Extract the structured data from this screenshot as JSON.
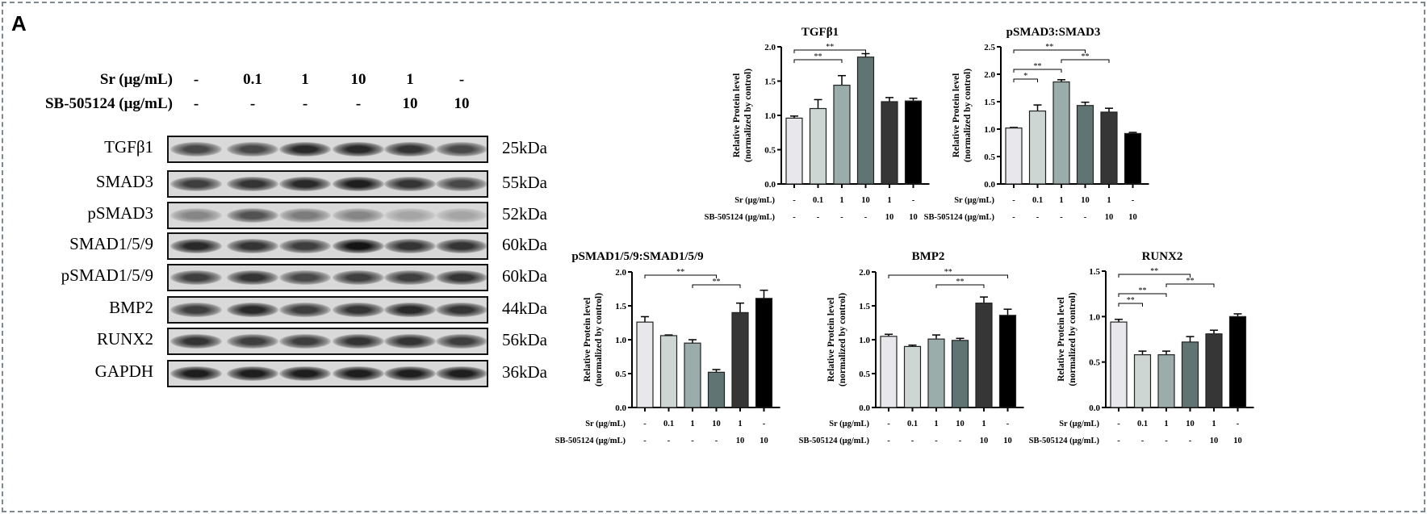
{
  "panel_letter": "A",
  "conditions": {
    "sr_label": "Sr (μg/mL)",
    "sb_label": "SB-505124 (μg/mL)",
    "sr_values": [
      "-",
      "0.1",
      "1",
      "10",
      "1",
      "-"
    ],
    "sb_values": [
      "-",
      "-",
      "-",
      "-",
      "10",
      "10"
    ]
  },
  "blots": [
    {
      "protein": "TGFβ1",
      "size": "25kDa"
    },
    {
      "protein": "SMAD3",
      "size": "55kDa"
    },
    {
      "protein": "pSMAD3",
      "size": "52kDa"
    },
    {
      "protein": "SMAD1/5/9",
      "size": "60kDa"
    },
    {
      "protein": "pSMAD1/5/9",
      "size": "60kDa"
    },
    {
      "protein": "BMP2",
      "size": "44kDa"
    },
    {
      "protein": "RUNX2",
      "size": "56kDa"
    },
    {
      "protein": "GAPDH",
      "size": "36kDa"
    }
  ],
  "bar_colors": [
    "#e8e8ec",
    "#ced6d3",
    "#9badaa",
    "#5f7473",
    "#363636",
    "#000000"
  ],
  "chart_data": [
    {
      "type": "bar",
      "title": "TGFβ1",
      "ylabel": "Relative Protein level",
      "ylabel2": "(normalized by control)",
      "ylim": [
        0,
        2.0
      ],
      "yticks": [
        "0.0",
        "0.5",
        "1.0",
        "1.5",
        "2.0"
      ],
      "row_labels": [
        "Sr (μg/mL)",
        "SB-505124 (μg/mL)"
      ],
      "categories_sr": [
        "-",
        "0.1",
        "1",
        "10",
        "1",
        "-"
      ],
      "categories_sb": [
        "-",
        "-",
        "-",
        "-",
        "10",
        "10"
      ],
      "values": [
        0.96,
        1.1,
        1.44,
        1.85,
        1.2,
        1.21
      ],
      "errors": [
        0.03,
        0.13,
        0.14,
        0.05,
        0.06,
        0.04
      ],
      "significance": [
        {
          "from": 1,
          "to": 3,
          "label": "**"
        },
        {
          "from": 1,
          "to": 4,
          "label": "**"
        }
      ]
    },
    {
      "type": "bar",
      "title": "pSMAD3:SMAD3",
      "ylabel": "Relative Protein level",
      "ylabel2": "(normalized by control)",
      "ylim": [
        0,
        2.5
      ],
      "yticks": [
        "0.0",
        "0.5",
        "1.0",
        "1.5",
        "2.0",
        "2.5"
      ],
      "row_labels": [
        "Sr (μg/mL)",
        "SB-505124 (μg/mL)"
      ],
      "categories_sr": [
        "-",
        "0.1",
        "1",
        "10",
        "1",
        "-"
      ],
      "categories_sb": [
        "-",
        "-",
        "-",
        "-",
        "10",
        "10"
      ],
      "values": [
        1.02,
        1.33,
        1.86,
        1.43,
        1.31,
        0.92
      ],
      "errors": [
        0.01,
        0.11,
        0.04,
        0.06,
        0.07,
        0.02
      ],
      "significance": [
        {
          "from": 1,
          "to": 2,
          "label": "*"
        },
        {
          "from": 1,
          "to": 3,
          "label": "**"
        },
        {
          "from": 3,
          "to": 5,
          "label": "**"
        },
        {
          "from": 1,
          "to": 4,
          "label": "**"
        }
      ]
    },
    {
      "type": "bar",
      "title": "pSMAD1/5/9:SMAD1/5/9",
      "ylabel": "Relative Protein level",
      "ylabel2": "(normalized by control)",
      "ylim": [
        0,
        2.0
      ],
      "yticks": [
        "0.0",
        "0.5",
        "1.0",
        "1.5",
        "2.0"
      ],
      "row_labels": [
        "Sr (μg/mL)",
        "SB-505124 (μg/mL)"
      ],
      "categories_sr": [
        "-",
        "0.1",
        "1",
        "10",
        "1",
        "-"
      ],
      "categories_sb": [
        "-",
        "-",
        "-",
        "-",
        "10",
        "10"
      ],
      "values": [
        1.26,
        1.06,
        0.95,
        0.52,
        1.4,
        1.61
      ],
      "errors": [
        0.08,
        0.01,
        0.05,
        0.04,
        0.14,
        0.12
      ],
      "significance": [
        {
          "from": 3,
          "to": 5,
          "label": "**"
        },
        {
          "from": 1,
          "to": 4,
          "label": "**"
        }
      ]
    },
    {
      "type": "bar",
      "title": "BMP2",
      "ylabel": "Relative Protein level",
      "ylabel2": "(normalized by control)",
      "ylim": [
        0,
        2.0
      ],
      "yticks": [
        "0.0",
        "0.5",
        "1.0",
        "1.5",
        "2.0"
      ],
      "row_labels": [
        "Sr (μg/mL)",
        "SB-505124 (μg/mL)"
      ],
      "categories_sr": [
        "-",
        "0.1",
        "1",
        "10",
        "1",
        "-"
      ],
      "categories_sb": [
        "-",
        "-",
        "-",
        "-",
        "10",
        "10"
      ],
      "values": [
        1.05,
        0.9,
        1.01,
        0.99,
        1.54,
        1.36
      ],
      "errors": [
        0.03,
        0.02,
        0.06,
        0.03,
        0.09,
        0.09
      ],
      "significance": [
        {
          "from": 3,
          "to": 5,
          "label": "**"
        },
        {
          "from": 1,
          "to": 6,
          "label": "**"
        }
      ]
    },
    {
      "type": "bar",
      "title": "RUNX2",
      "ylabel": "Relative Protein level",
      "ylabel2": "(normalized by control)",
      "ylim": [
        0,
        1.5
      ],
      "yticks": [
        "0.0",
        "0.5",
        "1.0",
        "1.5"
      ],
      "row_labels": [
        "Sr (μg/mL)",
        "SB-505124 (μg/mL)"
      ],
      "categories_sr": [
        "-",
        "0.1",
        "1",
        "10",
        "1",
        "-"
      ],
      "categories_sb": [
        "-",
        "-",
        "-",
        "-",
        "10",
        "10"
      ],
      "values": [
        0.94,
        0.58,
        0.58,
        0.72,
        0.81,
        1.0
      ],
      "errors": [
        0.03,
        0.04,
        0.04,
        0.06,
        0.04,
        0.03
      ],
      "significance": [
        {
          "from": 1,
          "to": 2,
          "label": "**"
        },
        {
          "from": 1,
          "to": 3,
          "label": "**"
        },
        {
          "from": 3,
          "to": 5,
          "label": "**"
        },
        {
          "from": 1,
          "to": 4,
          "label": "**"
        }
      ]
    }
  ]
}
